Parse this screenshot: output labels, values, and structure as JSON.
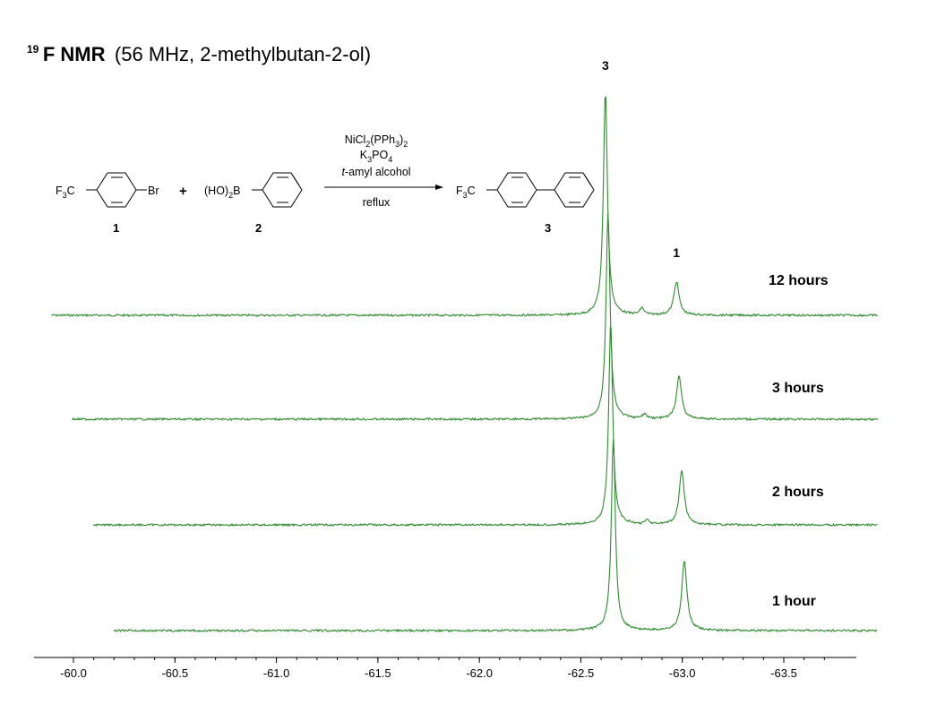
{
  "title": {
    "isotope_mass": "19",
    "nucleus": "F NMR",
    "conditions": "(56 MHz,  2-methylbutan-2-ol)"
  },
  "scheme": {
    "reactant1": {
      "left": "F",
      "sub": "3",
      "right": "C",
      "substituent": "Br",
      "number": "1"
    },
    "plus": "+",
    "reactant2": {
      "left": "(HO)",
      "sub": "2",
      "right": "B",
      "number": "2"
    },
    "reagents": {
      "line1": {
        "a": "NiCl",
        "s1": "2",
        "b": "(PPh",
        "s2": "3",
        "c": ")",
        "s3": "2"
      },
      "line2": {
        "a": "K",
        "s1": "3",
        "b": "PO",
        "s2": "4"
      },
      "line3": {
        "italic": "t",
        "rest": "-amyl alcohol"
      },
      "below": "reflux"
    },
    "product": {
      "left": "F",
      "sub": "3",
      "right": "C",
      "number": "3"
    }
  },
  "chart_data": {
    "type": "line",
    "xlabel": "",
    "ylabel": "",
    "xlim": [
      -60.15,
      -63.85
    ],
    "x_reversed": true,
    "x_ticks": [
      -60.0,
      -60.5,
      -61.0,
      -61.5,
      -62.0,
      -62.5,
      -63.0,
      -63.5
    ],
    "tick_labels": [
      "-60.0",
      "-60.5",
      "-61.0",
      "-61.5",
      "-62.0",
      "-62.5",
      "-63.0",
      "-63.5"
    ],
    "peak_labels": [
      {
        "text": "3",
        "x": -62.78
      },
      {
        "text": "1",
        "x": -63.13
      }
    ],
    "series": [
      {
        "name": "12 hours",
        "x_range": [
          -60.05,
          -64.25
        ],
        "peaks": [
          {
            "x": -62.78,
            "height": 1.0,
            "width": 0.012
          },
          {
            "x": -63.13,
            "height": 0.15,
            "width": 0.015
          },
          {
            "x": -62.96,
            "height": 0.03,
            "width": 0.012
          }
        ]
      },
      {
        "name": "3 hours",
        "x_range": [
          -60.1,
          -64.2
        ],
        "peaks": [
          {
            "x": -62.74,
            "height": 0.92,
            "width": 0.012
          },
          {
            "x": -63.09,
            "height": 0.19,
            "width": 0.015
          },
          {
            "x": -62.92,
            "height": 0.02,
            "width": 0.012
          }
        ]
      },
      {
        "name": "2 hours",
        "x_range": [
          -60.15,
          -64.15
        ],
        "peaks": [
          {
            "x": -62.7,
            "height": 0.9,
            "width": 0.012
          },
          {
            "x": -63.05,
            "height": 0.24,
            "width": 0.015
          },
          {
            "x": -62.88,
            "height": 0.02,
            "width": 0.012
          }
        ]
      },
      {
        "name": "1 hour",
        "x_range": [
          -60.2,
          -64.1
        ],
        "peaks": [
          {
            "x": -62.66,
            "height": 0.86,
            "width": 0.012
          },
          {
            "x": -63.01,
            "height": 0.31,
            "width": 0.015
          }
        ]
      }
    ],
    "line_color": "#2e8b2e",
    "grid": false
  }
}
